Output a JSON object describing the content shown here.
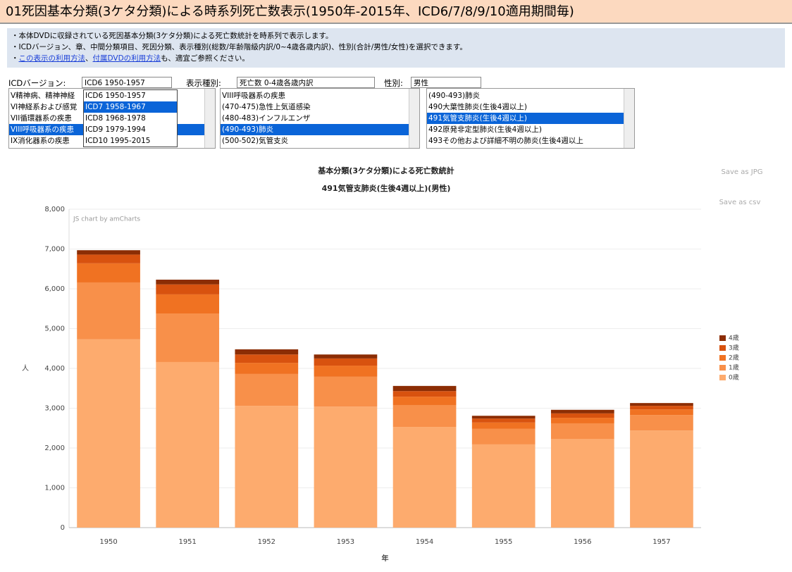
{
  "header": {
    "title": "01死因基本分類(3ケタ分類)による時系列死亡数表示(1950年-2015年、ICD6/7/8/9/10適用期間毎)"
  },
  "info": {
    "lines": [
      "・本体DVDに収録されている死因基本分類(3ケタ分類)による死亡数統計を時系列で表示します。",
      "・ICDバージョン、章、中間分類項目、死因分類、表示種別(総数/年齢階級内訳/0~4歳各歳内訳)、性別(合計/男性/女性)を選択できます。"
    ],
    "line3": {
      "prefix": "・",
      "link1": "この表示の利用方法",
      "mid": "、",
      "link2": "付属DVDの利用方法",
      "tail": "も、適宜ご参照ください。"
    }
  },
  "controls": {
    "icd_label": "ICDバージョン:",
    "icd_value": "ICD6 1950-1957",
    "icd_options": [
      "ICD6 1950-1957",
      "ICD7 1958-1967",
      "ICD8 1968-1978",
      "ICD9 1979-1994",
      "ICD10 1995-2015"
    ],
    "icd_highlight": 1,
    "kind_label": "表示種別:",
    "kind_value": "死亡数 0-4歳各歳内訳",
    "sex_label": "性別:",
    "sex_value": "男性"
  },
  "lists": [
    {
      "items": [
        "V精神病、精神神経",
        "VI神経系および感覚",
        "VII循環器系の疾患",
        "VIII呼吸器系の疾患",
        "IX消化器系の疾患"
      ],
      "selected": 3
    },
    {
      "items": [
        "VIII呼吸器系の疾患",
        "(470-475)急性上気道感染",
        "(480-483)インフルエンザ",
        "(490-493)肺炎",
        "(500-502)気管支炎"
      ],
      "selected": 3
    },
    {
      "items": [
        "(490-493)肺炎",
        "490大葉性肺炎(生後4週以上)",
        "491気管支肺炎(生後4週以上)",
        "492原発非定型肺炎(生後4週以上)",
        "493その他および詳細不明の肺炎(生後4週以上"
      ],
      "selected": 2
    }
  ],
  "chart_data": {
    "type": "bar",
    "stacked": true,
    "title": "基本分類(3ケタ分類)による死亡数統計",
    "subtitle": "491気管支肺炎(生後4週以上)(男性)",
    "credit": "JS chart by amCharts",
    "save_jpg": "Save as JPG",
    "save_csv": "Save as csv",
    "xlabel": "年",
    "ylabel": "人",
    "legend": "right",
    "categories": [
      "1950",
      "1951",
      "1952",
      "1953",
      "1954",
      "1955",
      "1956",
      "1957"
    ],
    "series": [
      {
        "name": "0歳",
        "color": "#fdab6e",
        "values": [
          4730,
          4160,
          3060,
          3040,
          2530,
          2090,
          2230,
          2440
        ]
      },
      {
        "name": "1歳",
        "color": "#f8904a",
        "values": [
          1430,
          1220,
          800,
          750,
          550,
          390,
          390,
          390
        ]
      },
      {
        "name": "2歳",
        "color": "#f07222",
        "values": [
          480,
          480,
          280,
          280,
          210,
          160,
          140,
          140
        ]
      },
      {
        "name": "3歳",
        "color": "#d8520f",
        "values": [
          220,
          250,
          210,
          180,
          140,
          100,
          110,
          90
        ]
      },
      {
        "name": "4歳",
        "color": "#8c2d04",
        "values": [
          110,
          120,
          130,
          100,
          130,
          70,
          90,
          70
        ]
      }
    ],
    "ylim": [
      0,
      8000
    ],
    "yticks": [
      0,
      {
        "value": 1000,
        "label": "1,000"
      },
      {
        "value": 2000,
        "label": "2,000"
      },
      {
        "value": 3000,
        "label": "3,000"
      },
      {
        "value": 4000,
        "label": "4,000"
      },
      {
        "value": 5000,
        "label": "5,000"
      },
      {
        "value": 6000,
        "label": "6,000"
      },
      {
        "value": 7000,
        "label": "7,000"
      },
      {
        "value": 8000,
        "label": "8,000"
      }
    ],
    "grid": true
  }
}
